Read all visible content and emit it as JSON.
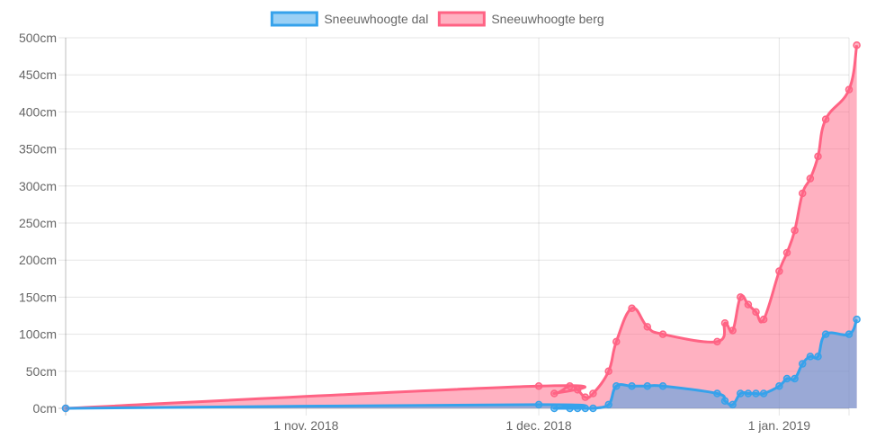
{
  "chart_data": {
    "type": "area",
    "x_type": "date",
    "x_ticks": [
      {
        "date": "2018-11-01",
        "label": "1 nov. 2018"
      },
      {
        "date": "2018-12-01",
        "label": "1 dec. 2018"
      },
      {
        "date": "2019-01-01",
        "label": "1 jan. 2019"
      }
    ],
    "xlim": [
      "2018-10-01",
      "2019-01-10"
    ],
    "ylim": [
      0,
      500
    ],
    "y_ticks": [
      0,
      50,
      100,
      150,
      200,
      250,
      300,
      350,
      400,
      450,
      500
    ],
    "y_tick_suffix": "cm",
    "grid": true,
    "legend_position": "top",
    "series": [
      {
        "name": "Sneeuwhoogte dal",
        "color": "#36a2eb",
        "fill": "rgba(54,162,235,0.5)",
        "points": [
          [
            "2018-10-01",
            0
          ],
          [
            "2018-12-01",
            5
          ],
          [
            "2018-12-03",
            0
          ],
          [
            "2018-12-05",
            0
          ],
          [
            "2018-12-06",
            0
          ],
          [
            "2018-12-07",
            0
          ],
          [
            "2018-12-08",
            0
          ],
          [
            "2018-12-10",
            5
          ],
          [
            "2018-12-11",
            30
          ],
          [
            "2018-12-13",
            30
          ],
          [
            "2018-12-15",
            30
          ],
          [
            "2018-12-17",
            30
          ],
          [
            "2018-12-24",
            20
          ],
          [
            "2018-12-25",
            10
          ],
          [
            "2018-12-26",
            5
          ],
          [
            "2018-12-27",
            20
          ],
          [
            "2018-12-28",
            20
          ],
          [
            "2018-12-29",
            20
          ],
          [
            "2018-12-30",
            20
          ],
          [
            "2019-01-01",
            30
          ],
          [
            "2019-01-02",
            40
          ],
          [
            "2019-01-03",
            40
          ],
          [
            "2019-01-04",
            60
          ],
          [
            "2019-01-05",
            70
          ],
          [
            "2019-01-06",
            70
          ],
          [
            "2019-01-07",
            100
          ],
          [
            "2019-01-10",
            100
          ],
          [
            "2019-01-11",
            120
          ]
        ]
      },
      {
        "name": "Sneeuwhoogte berg",
        "color": "#ff6384",
        "fill": "rgba(255,99,132,0.5)",
        "points": [
          [
            "2018-10-01",
            0
          ],
          [
            "2018-12-01",
            30
          ],
          [
            "2018-12-03",
            20
          ],
          [
            "2018-12-05",
            30
          ],
          [
            "2018-12-06",
            25
          ],
          [
            "2018-12-07",
            15
          ],
          [
            "2018-12-08",
            20
          ],
          [
            "2018-12-10",
            50
          ],
          [
            "2018-12-11",
            90
          ],
          [
            "2018-12-13",
            135
          ],
          [
            "2018-12-15",
            110
          ],
          [
            "2018-12-17",
            100
          ],
          [
            "2018-12-24",
            90
          ],
          [
            "2018-12-25",
            115
          ],
          [
            "2018-12-26",
            105
          ],
          [
            "2018-12-27",
            150
          ],
          [
            "2018-12-28",
            140
          ],
          [
            "2018-12-29",
            130
          ],
          [
            "2018-12-30",
            120
          ],
          [
            "2019-01-01",
            185
          ],
          [
            "2019-01-02",
            210
          ],
          [
            "2019-01-03",
            240
          ],
          [
            "2019-01-04",
            290
          ],
          [
            "2019-01-05",
            310
          ],
          [
            "2019-01-06",
            340
          ],
          [
            "2019-01-07",
            390
          ],
          [
            "2019-01-10",
            430
          ],
          [
            "2019-01-11",
            490
          ]
        ]
      }
    ]
  }
}
